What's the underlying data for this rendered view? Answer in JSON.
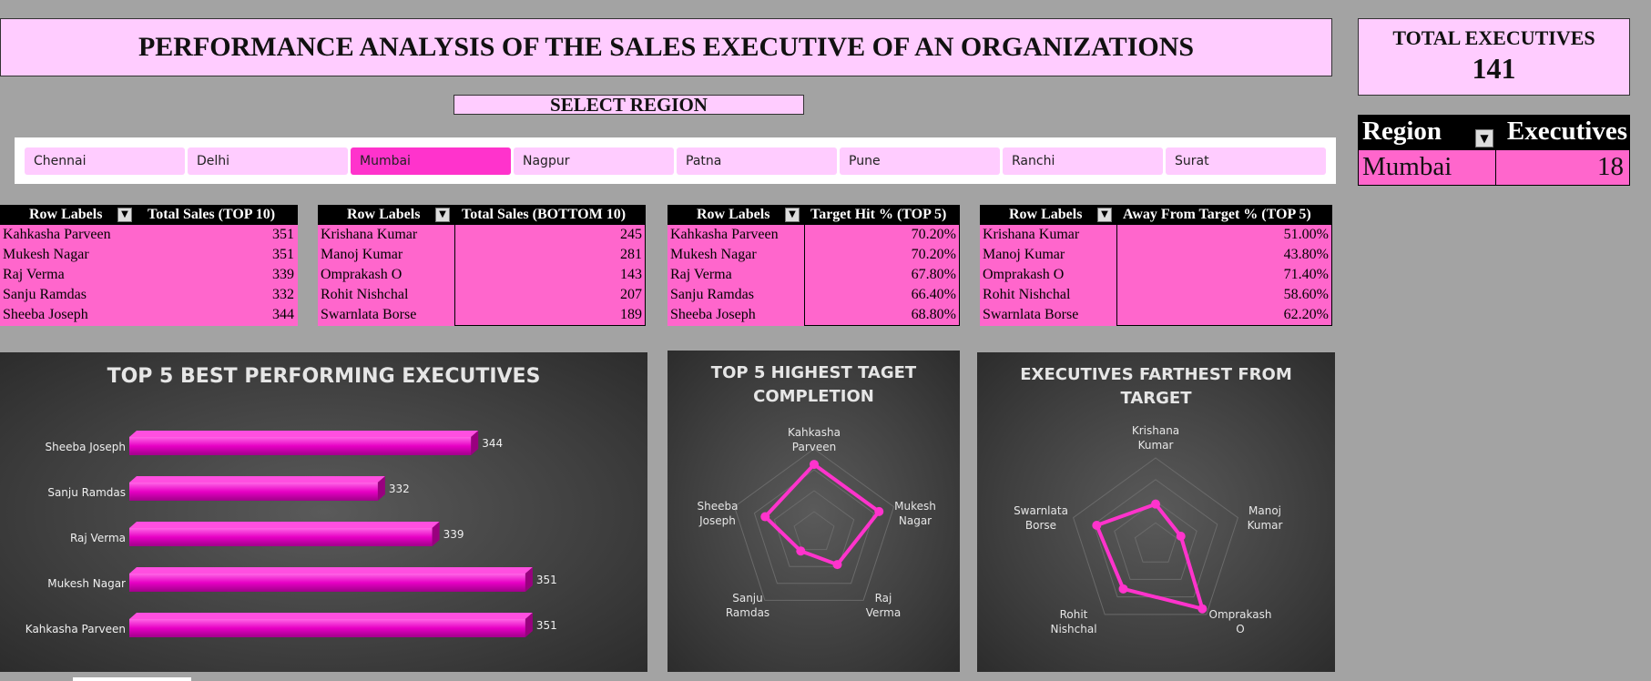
{
  "header": {
    "title": "PERFORMANCE ANALYSIS OF THE SALES EXECUTIVE OF AN ORGANIZATIONS"
  },
  "total": {
    "label": "TOTAL EXECUTIVES",
    "value": "141"
  },
  "select_region": {
    "label": "SELECT REGION"
  },
  "slicer": {
    "items": [
      "Chennai",
      "Delhi",
      "Mumbai",
      "Nagpur",
      "Patna",
      "Pune",
      "Ranchi",
      "Surat"
    ],
    "selected": "Mumbai",
    "selected_color": "#ff33cc"
  },
  "region_table": {
    "col1": "Region",
    "col2": "Executives",
    "region": "Mumbai",
    "count": "18"
  },
  "pivots": [
    {
      "row_header": "Row Labels",
      "value_header": "Total Sales (TOP 10)",
      "rows": [
        [
          "Kahkasha Parveen",
          "351"
        ],
        [
          "Mukesh Nagar",
          "351"
        ],
        [
          "Raj Verma",
          "339"
        ],
        [
          "Sanju Ramdas",
          "332"
        ],
        [
          "Sheeba Joseph",
          "344"
        ]
      ]
    },
    {
      "row_header": "Row Labels",
      "value_header": "Total Sales (BOTTOM 10)",
      "rows": [
        [
          "Krishana Kumar",
          "245"
        ],
        [
          "Manoj Kumar",
          "281"
        ],
        [
          "Omprakash O",
          "143"
        ],
        [
          "Rohit Nishchal",
          "207"
        ],
        [
          "Swarnlata Borse",
          "189"
        ]
      ]
    },
    {
      "row_header": "Row Labels",
      "value_header": "Target Hit % (TOP 5)",
      "rows": [
        [
          "Kahkasha Parveen",
          "70.20%"
        ],
        [
          "Mukesh Nagar",
          "70.20%"
        ],
        [
          "Raj Verma",
          "67.80%"
        ],
        [
          "Sanju Ramdas",
          "66.40%"
        ],
        [
          "Sheeba Joseph",
          "68.80%"
        ]
      ]
    },
    {
      "row_header": "Row Labels",
      "value_header": "Away From Target % (TOP 5)",
      "rows": [
        [
          "Krishana Kumar",
          "51.00%"
        ],
        [
          "Manoj Kumar",
          "43.80%"
        ],
        [
          "Omprakash O",
          "71.40%"
        ],
        [
          "Rohit Nishchal",
          "58.60%"
        ],
        [
          "Swarnlata Borse",
          "62.20%"
        ]
      ]
    }
  ],
  "colors": {
    "accent": "#ff33cc",
    "pink_light": "#ffccff",
    "pink_mid": "#ff66cc",
    "chart_bg": "#3f3f3f"
  },
  "chart_data": [
    {
      "type": "bar",
      "title": "TOP 5 BEST PERFORMING EXECUTIVES",
      "categories": [
        "Sheeba Joseph",
        "Sanju Ramdas",
        "Raj Verma",
        "Mukesh Nagar",
        "Kahkasha Parveen"
      ],
      "values": [
        344,
        332,
        339,
        351,
        351
      ],
      "xlim": [
        300,
        355
      ],
      "orientation": "horizontal",
      "grid": false
    },
    {
      "type": "radar",
      "title": [
        "TOP 5 HIGHEST TAGET",
        "COMPLETION"
      ],
      "axes": [
        [
          "Kahkasha",
          "Parveen"
        ],
        [
          "Mukesh",
          "Nagar"
        ],
        [
          "Raj",
          "Verma"
        ],
        [
          "Sanju",
          "Ramdas"
        ],
        [
          "Sheeba",
          "Joseph"
        ]
      ],
      "values": [
        70.2,
        70.2,
        67.8,
        66.4,
        68.8
      ],
      "rlim": [
        64.5,
        71.5
      ]
    },
    {
      "type": "radar",
      "title": [
        "EXECUTIVES FARTHEST FROM",
        "TARGET"
      ],
      "axes": [
        [
          "Krishana",
          "Kumar"
        ],
        [
          "Manoj",
          "Kumar"
        ],
        [
          "Omprakash",
          "O"
        ],
        [
          "Rohit",
          "Nishchal"
        ],
        [
          "Swarnlata",
          "Borse"
        ]
      ],
      "values": [
        51.0,
        43.8,
        71.4,
        58.6,
        62.2
      ],
      "rlim": [
        30,
        75
      ]
    }
  ]
}
